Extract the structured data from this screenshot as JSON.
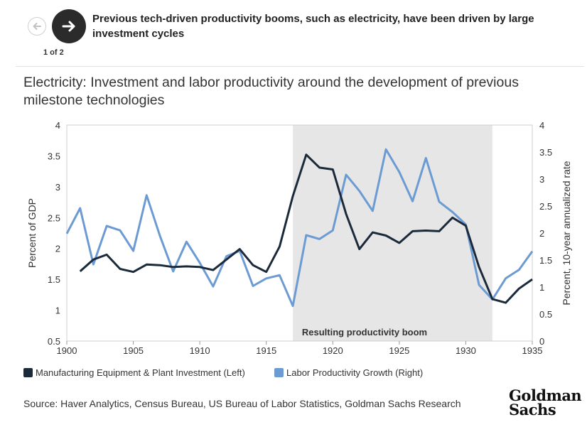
{
  "header": {
    "title": "Previous tech-driven productivity booms, such as electricity, have been driven by large investment cycles",
    "counter": "1 of 2"
  },
  "footer": {
    "source": "Source: Haver Analytics, Census Bureau, US Bureau of Labor Statistics, Goldman Sachs Research",
    "logo_line1": "Goldman",
    "logo_line2": "Sachs"
  },
  "icons": {
    "prev": "arrow-left-icon",
    "next": "arrow-right-icon"
  },
  "colors": {
    "series_left": "#1b2a3a",
    "series_right": "#6b9bd2",
    "shade": "#e6e6e6",
    "nav_next": "#2b2b2b"
  },
  "chart_data": {
    "type": "line",
    "title": "Electricity: Investment and labor productivity around the development of previous milestone technologies",
    "xlabel": "",
    "ylabel": "Percent of GDP",
    "ylabel_right": "Percent, 10-year annualized rate",
    "xlim": [
      1900,
      1935
    ],
    "ylim": [
      0.5,
      4
    ],
    "ylim_right": [
      0,
      4
    ],
    "x_ticks": [
      "1900",
      "1905",
      "1910",
      "1915",
      "1920",
      "1925",
      "1930",
      "1935"
    ],
    "y_ticks": [
      "4",
      "3.5",
      "3",
      "2.5",
      "2",
      "1.5",
      "1",
      "0.5"
    ],
    "y_ticks_right": [
      "4",
      "3.5",
      "3",
      "2.5",
      "2",
      "1.5",
      "1",
      "0.5",
      "0"
    ],
    "shaded_region": {
      "x": [
        1917,
        1932
      ],
      "label": "Resulting productivity boom"
    },
    "legend_position": "bottom-left",
    "series": [
      {
        "name": "Manufacturing Equipment & Plant Investment (Left)",
        "axis": "left",
        "x": [
          1901,
          1902,
          1903,
          1904,
          1905,
          1906,
          1907,
          1908,
          1909,
          1910,
          1911,
          1912,
          1913,
          1914,
          1915,
          1916,
          1917,
          1918,
          1919,
          1920,
          1921,
          1922,
          1923,
          1924,
          1925,
          1926,
          1927,
          1928,
          1929,
          1930,
          1931,
          1932,
          1933,
          1934,
          1935
        ],
        "values": [
          1.63,
          1.82,
          1.9,
          1.67,
          1.62,
          1.74,
          1.73,
          1.7,
          1.71,
          1.7,
          1.65,
          1.82,
          1.99,
          1.73,
          1.62,
          2.03,
          2.85,
          3.52,
          3.31,
          3.28,
          2.56,
          1.99,
          2.26,
          2.21,
          2.09,
          2.28,
          2.29,
          2.28,
          2.5,
          2.37,
          1.7,
          1.18,
          1.12,
          1.35,
          1.5
        ]
      },
      {
        "name": "Labor Productivity Growth (Right)",
        "axis": "right",
        "x": [
          1900,
          1901,
          1902,
          1903,
          1904,
          1905,
          1906,
          1907,
          1908,
          1909,
          1910,
          1911,
          1912,
          1913,
          1914,
          1915,
          1916,
          1917,
          1918,
          1919,
          1920,
          1921,
          1922,
          1923,
          1924,
          1925,
          1926,
          1927,
          1928,
          1929,
          1930,
          1931,
          1932,
          1933,
          1934,
          1935
        ],
        "values": [
          1.99,
          2.46,
          1.42,
          2.13,
          2.05,
          1.67,
          2.7,
          1.95,
          1.29,
          1.84,
          1.45,
          1.01,
          1.57,
          1.67,
          1.02,
          1.16,
          1.22,
          0.65,
          1.96,
          1.89,
          2.05,
          3.08,
          2.78,
          2.41,
          3.55,
          3.13,
          2.59,
          3.39,
          2.58,
          2.39,
          2.16,
          1.04,
          0.77,
          1.16,
          1.32,
          1.66
        ]
      }
    ]
  }
}
